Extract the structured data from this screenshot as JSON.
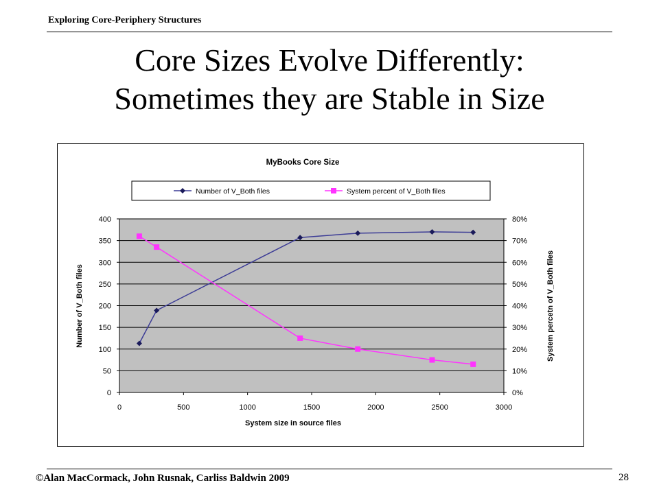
{
  "slide": {
    "header": "Exploring Core-Periphery Structures",
    "title_line1": "Core Sizes Evolve Differently:",
    "title_line2": "Sometimes they are Stable in Size",
    "footer": "©Alan MacCormack, John Rusnak, Carliss Baldwin 2009",
    "page_number": "28"
  },
  "colors": {
    "series1": "#3c3c96",
    "series2": "#ff33ff",
    "plot_bg": "#c0c0c0"
  },
  "chart_data": {
    "type": "line",
    "title": "MyBooks Core Size",
    "xlabel": "System size in source files",
    "ylabel": "Number of V_Both files",
    "y2label": "System percetn of V_Both files",
    "xlim": [
      0,
      3000
    ],
    "ylim": [
      0,
      400
    ],
    "y2lim": [
      0,
      80
    ],
    "x_ticks": [
      "0",
      "500",
      "1000",
      "1500",
      "2000",
      "2500",
      "3000"
    ],
    "y_ticks": [
      "0",
      "50",
      "100",
      "150",
      "200",
      "250",
      "300",
      "350",
      "400"
    ],
    "y2_ticks": [
      "0%",
      "10%",
      "20%",
      "30%",
      "40%",
      "50%",
      "60%",
      "70%",
      "80%"
    ],
    "grid": "horizontal",
    "legend_position": "top",
    "series": [
      {
        "name": "Number of V_Both files",
        "axis": "left",
        "marker": "diamond",
        "x": [
          155,
          290,
          1410,
          1860,
          2440,
          2760
        ],
        "y": [
          113,
          189,
          357,
          367,
          370,
          369
        ]
      },
      {
        "name": "System percent of V_Both files",
        "axis": "right",
        "marker": "square",
        "x": [
          155,
          290,
          1410,
          1860,
          2440,
          2760
        ],
        "y": [
          72,
          67,
          25,
          20,
          15,
          13
        ]
      }
    ]
  }
}
